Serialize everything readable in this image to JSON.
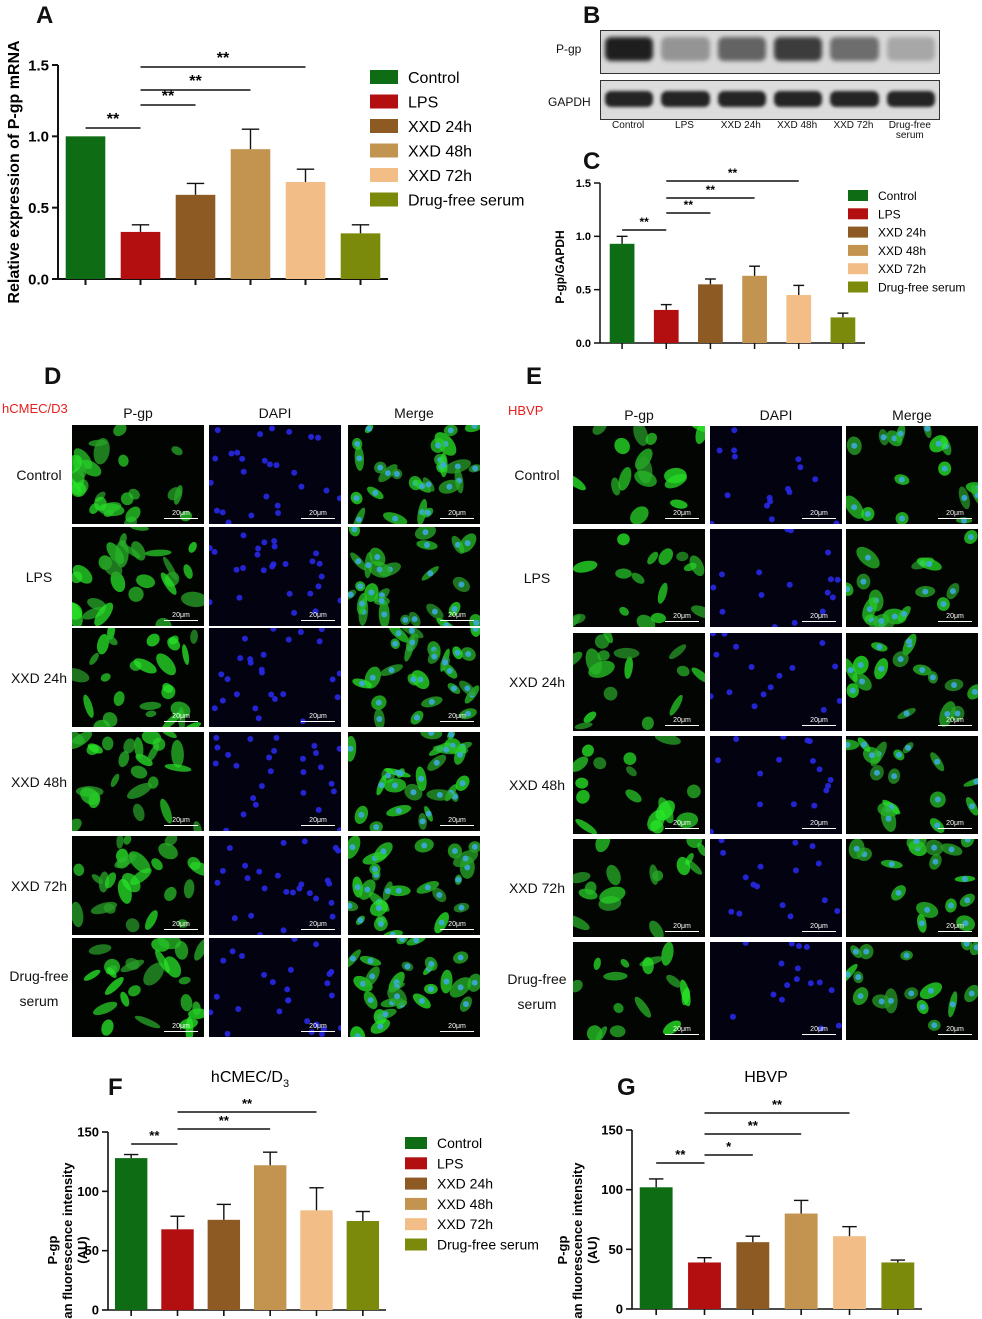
{
  "panel_letters": [
    "A",
    "B",
    "C",
    "D",
    "E",
    "F",
    "G"
  ],
  "colors": {
    "Control": "#0e6d14",
    "LPS": "#b30f10",
    "XXD 24h": "#8c5a22",
    "XXD 48h": "#c29450",
    "XXD 72h": "#f2bd86",
    "Drug-free serum": "#7c8a0c"
  },
  "western": {
    "rows": [
      "P-gp",
      "GAPDH"
    ],
    "lanes": [
      "Control",
      "LPS",
      "XXD 24h",
      "XXD 48h",
      "XXD 72h",
      "Drug-free serum"
    ],
    "lane_labels": [
      "Control",
      "LPS",
      "XXD 24h",
      "XXD 48h",
      "XXD 72h",
      "Drug-free"
    ],
    "lane_label_extra": "serum",
    "pgp_intensity": [
      0.95,
      0.35,
      0.6,
      0.8,
      0.55,
      0.25
    ]
  },
  "if_D": {
    "cell_line": "hCMEC/D3",
    "columns": [
      "P-gp",
      "DAPI",
      "Merge"
    ],
    "rows": [
      "Control",
      "LPS",
      "XXD 24h",
      "XXD 48h",
      "XXD 72h",
      "Drug-free serum"
    ],
    "row_labels": [
      [
        "Control"
      ],
      [
        "LPS"
      ],
      [
        "XXD 24h"
      ],
      [
        "XXD 48h"
      ],
      [
        "XXD 72h"
      ],
      [
        "Drug-free",
        "serum"
      ]
    ],
    "scale": "20μm"
  },
  "if_E": {
    "cell_line": "HBVP",
    "columns": [
      "P-gp",
      "DAPI",
      "Merge"
    ],
    "rows": [
      "Control",
      "LPS",
      "XXD 24h",
      "XXD 48h",
      "XXD 72h",
      "Drug-free serum"
    ],
    "row_labels": [
      [
        "Control"
      ],
      [
        "LPS"
      ],
      [
        "XXD 24h"
      ],
      [
        "XXD 48h"
      ],
      [
        "XXD 72h"
      ],
      [
        "Drug-free",
        "serum"
      ]
    ],
    "scale": "20μm"
  },
  "chart_data": [
    {
      "id": "A",
      "type": "bar",
      "categories": [
        "Control",
        "LPS",
        "XXD 24h",
        "XXD 48h",
        "XXD 72h",
        "Drug-free serum"
      ],
      "values": [
        1.0,
        0.33,
        0.59,
        0.91,
        0.68,
        0.32
      ],
      "errors": [
        0.0,
        0.05,
        0.08,
        0.14,
        0.09,
        0.06
      ],
      "ylabel": "Relative expression of P-gp mRNA",
      "ylim": [
        0,
        1.5
      ],
      "yticks": [
        "0.0",
        "0.5",
        "1.0",
        "1.5"
      ],
      "significance": [
        {
          "from": 0,
          "to": 1,
          "label": "**"
        },
        {
          "from": 1,
          "to": 2,
          "label": "**"
        },
        {
          "from": 1,
          "to": 3,
          "label": "**"
        },
        {
          "from": 1,
          "to": 4,
          "label": "**"
        }
      ],
      "legend": [
        "Control",
        "LPS",
        "XXD 24h",
        "XXD 48h",
        "XXD 72h",
        "Drug-free serum"
      ],
      "legend_position": "right"
    },
    {
      "id": "C",
      "type": "bar",
      "categories": [
        "Control",
        "LPS",
        "XXD 24h",
        "XXD 48h",
        "XXD 72h",
        "Drug-free serum"
      ],
      "values": [
        0.93,
        0.31,
        0.55,
        0.63,
        0.45,
        0.24
      ],
      "errors": [
        0.07,
        0.05,
        0.05,
        0.09,
        0.09,
        0.04
      ],
      "ylabel": "P-gp/GAPDH",
      "ylim": [
        0,
        1.5
      ],
      "yticks": [
        "0.0",
        "0.5",
        "1.0",
        "1.5"
      ],
      "significance": [
        {
          "from": 0,
          "to": 1,
          "label": "**"
        },
        {
          "from": 1,
          "to": 2,
          "label": "**"
        },
        {
          "from": 1,
          "to": 3,
          "label": "**"
        },
        {
          "from": 1,
          "to": 4,
          "label": "**"
        }
      ],
      "legend": [
        "Control",
        "LPS",
        "XXD 24h",
        "XXD 48h",
        "XXD 72h",
        "Drug-free serum"
      ],
      "legend_position": "right"
    },
    {
      "id": "F",
      "type": "bar",
      "title_main": "hCMEC/D",
      "title_sub": "3",
      "categories": [
        "Control",
        "LPS",
        "XXD 24h",
        "XXD 48h",
        "XXD 72h",
        "Drug-free serum"
      ],
      "values": [
        128,
        68,
        76,
        122,
        84,
        75
      ],
      "errors": [
        3,
        11,
        13,
        11,
        19,
        8
      ],
      "ylabel_lines": [
        "P-gp",
        "mean fluorescence intensity",
        "(AU)"
      ],
      "ylim": [
        0,
        150
      ],
      "yticks": [
        "0",
        "50",
        "100",
        "150"
      ],
      "significance": [
        {
          "from": 0,
          "to": 1,
          "label": "**"
        },
        {
          "from": 1,
          "to": 3,
          "label": "**"
        },
        {
          "from": 1,
          "to": 4,
          "label": "**"
        }
      ],
      "legend": [
        "Control",
        "LPS",
        "XXD 24h",
        "XXD 48h",
        "XXD 72h",
        "Drug-free serum"
      ],
      "legend_position": "right"
    },
    {
      "id": "G",
      "type": "bar",
      "title": "HBVP",
      "categories": [
        "Control",
        "LPS",
        "XXD 24h",
        "XXD 48h",
        "XXD 72h",
        "Drug-free serum"
      ],
      "values": [
        102,
        39,
        56,
        80,
        61,
        39
      ],
      "errors": [
        7,
        4,
        5,
        11,
        8,
        2
      ],
      "ylabel_lines": [
        "P-gp",
        "mean fluorescence intensity",
        "(AU)"
      ],
      "ylim": [
        0,
        150
      ],
      "yticks": [
        "0",
        "50",
        "100",
        "150"
      ],
      "significance": [
        {
          "from": 0,
          "to": 1,
          "label": "**"
        },
        {
          "from": 1,
          "to": 2,
          "label": "*"
        },
        {
          "from": 1,
          "to": 3,
          "label": "**"
        },
        {
          "from": 1,
          "to": 4,
          "label": "**"
        }
      ]
    }
  ]
}
